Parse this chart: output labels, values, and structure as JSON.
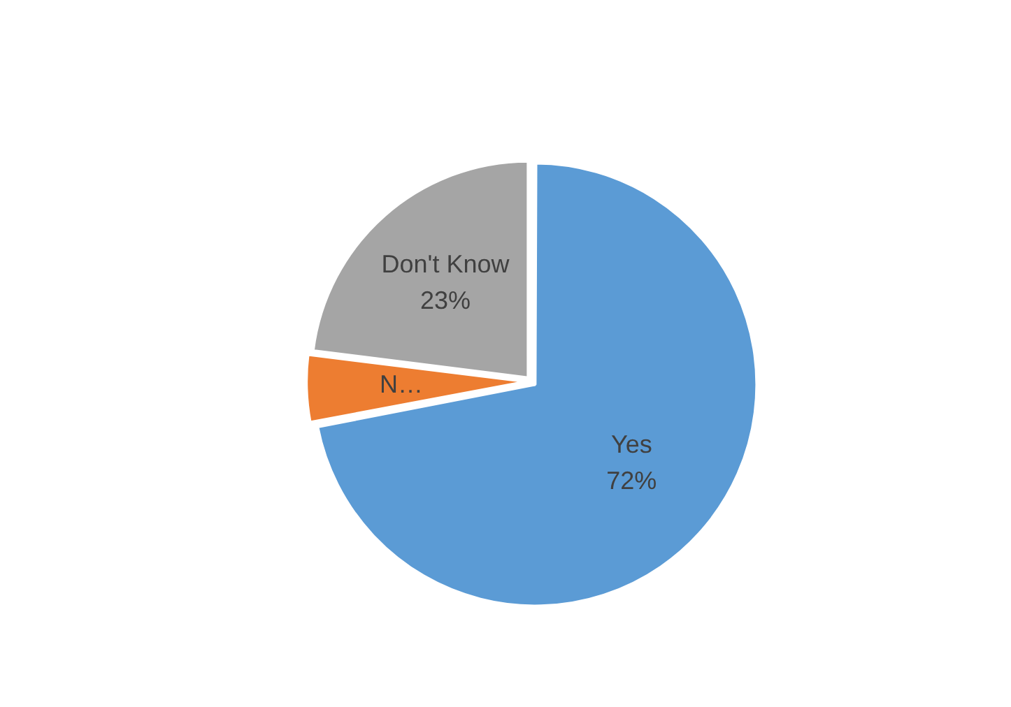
{
  "chart_data": {
    "type": "pie",
    "categories": [
      "Yes",
      "N…",
      "Don't Know"
    ],
    "values": [
      72,
      5,
      23
    ],
    "colors": [
      "#5b9bd5",
      "#ed7d31",
      "#a5a5a5"
    ],
    "value_labels": [
      "72%",
      null,
      "23%"
    ],
    "legend": false
  }
}
